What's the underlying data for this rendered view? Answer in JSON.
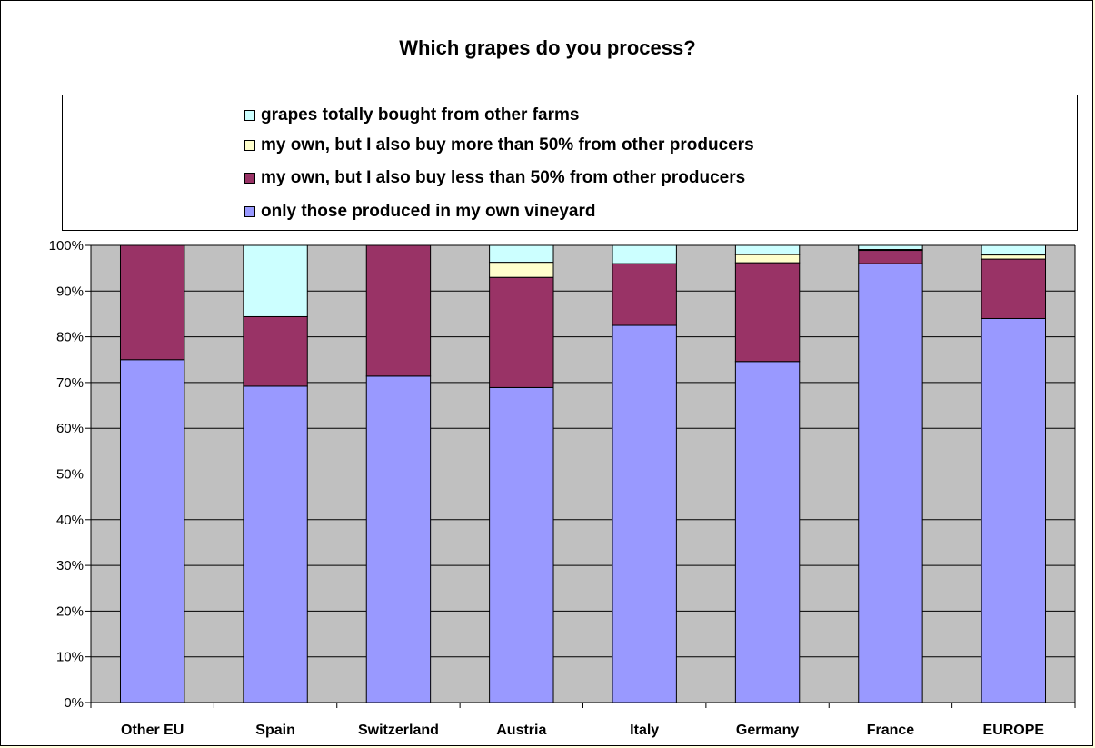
{
  "chart_data": {
    "type": "bar",
    "stacked": true,
    "title": "Which grapes do you process?",
    "categories": [
      "Other EU",
      "Spain",
      "Switzerland",
      "Austria",
      "Italy",
      "Germany",
      "France",
      "EUROPE"
    ],
    "series": [
      {
        "name": "only those produced in my own vineyard",
        "color": "#9999ff",
        "values": [
          75,
          69.2,
          71.4,
          68.9,
          82.5,
          74.6,
          96,
          84
        ]
      },
      {
        "name": "my own, but I also buy less than 50% from other producers",
        "color": "#993366",
        "values": [
          25,
          15.2,
          28.6,
          24.1,
          13.5,
          21.6,
          2.9,
          13
        ]
      },
      {
        "name": "my own, but I also buy more than 50% from other producers",
        "color": "#ffffcc",
        "values": [
          0,
          0,
          0,
          3.3,
          0,
          1.8,
          0.2,
          0.9
        ]
      },
      {
        "name": "grapes totally bought from other farms",
        "color": "#ccffff",
        "values": [
          0,
          15.6,
          0,
          3.7,
          4,
          2,
          0.9,
          2.1
        ]
      }
    ],
    "legend_order": [
      3,
      2,
      1,
      0
    ],
    "legend_position": "top",
    "ylim": [
      0,
      100
    ],
    "yticks": [
      "0%",
      "10%",
      "20%",
      "30%",
      "40%",
      "50%",
      "60%",
      "70%",
      "80%",
      "90%",
      "100%"
    ],
    "grid": true,
    "plot_background": "#c0c0c0"
  }
}
